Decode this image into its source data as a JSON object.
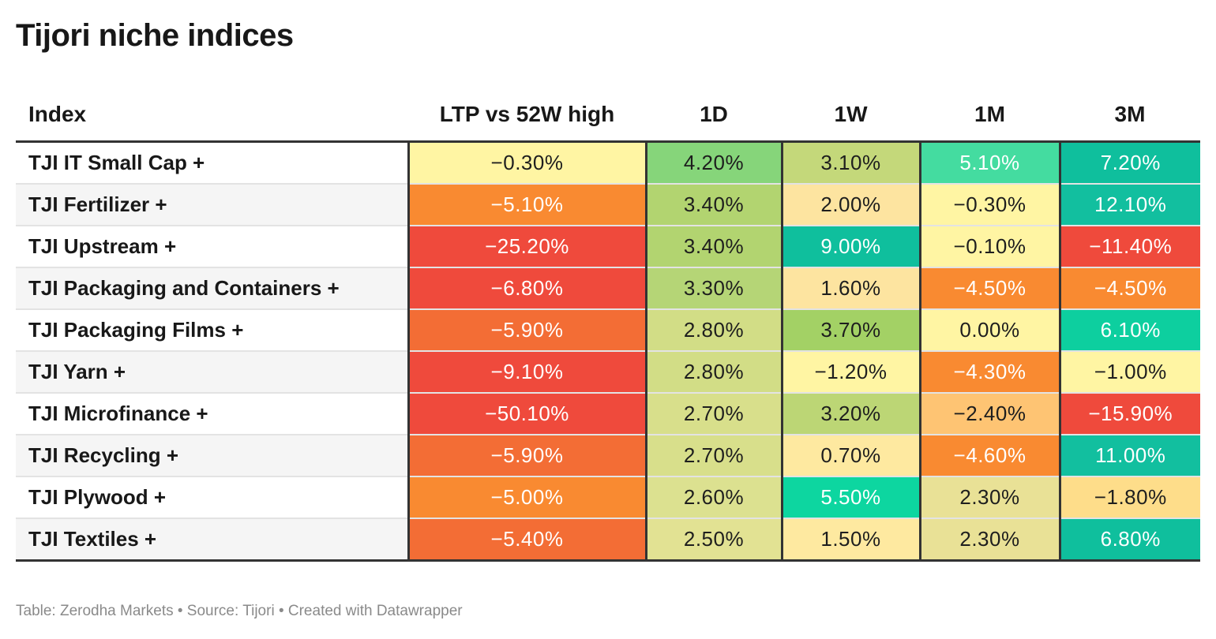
{
  "title": "Tijori niche indices",
  "footer": "Table: Zerodha Markets • Source: Tijori • Created with Datawrapper",
  "chart_data": {
    "type": "table",
    "columns": [
      "Index",
      "LTP vs 52W high",
      "1D",
      "1W",
      "1M",
      "3M"
    ],
    "rows": [
      {
        "name": "TJI IT Small Cap +",
        "values": [
          "−0.30%",
          "4.20%",
          "3.10%",
          "5.10%",
          "7.20%"
        ],
        "colors": [
          "#fff5a3",
          "#86d57a",
          "#c4d87a",
          "#44dca0",
          "#0fbf9d"
        ]
      },
      {
        "name": "TJI Fertilizer +",
        "values": [
          "−5.10%",
          "3.40%",
          "2.00%",
          "−0.30%",
          "12.10%"
        ],
        "colors": [
          "#f98a31",
          "#b2d470",
          "#fde4a0",
          "#fff5a3",
          "#12bf9f"
        ]
      },
      {
        "name": "TJI Upstream +",
        "values": [
          "−25.20%",
          "3.40%",
          "9.00%",
          "−0.10%",
          "−11.40%"
        ],
        "colors": [
          "#ef4a3c",
          "#b2d470",
          "#0fbf9d",
          "#fff5a3",
          "#ef4a3c"
        ]
      },
      {
        "name": "TJI Packaging and Containers +",
        "values": [
          "−6.80%",
          "3.30%",
          "1.60%",
          "−4.50%",
          "−4.50%"
        ],
        "colors": [
          "#ef4a3c",
          "#b5d576",
          "#fde4a0",
          "#f98a31",
          "#f98a31"
        ]
      },
      {
        "name": "TJI Packaging Films +",
        "values": [
          "−5.90%",
          "2.80%",
          "3.70%",
          "0.00%",
          "6.10%"
        ],
        "colors": [
          "#f36d35",
          "#d2dd86",
          "#a3d165",
          "#fff5a3",
          "#0dcf9f"
        ]
      },
      {
        "name": "TJI Yarn +",
        "values": [
          "−9.10%",
          "2.80%",
          "−1.20%",
          "−4.30%",
          "−1.00%"
        ],
        "colors": [
          "#ef4a3c",
          "#d2dd86",
          "#fff5a3",
          "#f98a31",
          "#fff5a3"
        ]
      },
      {
        "name": "TJI Microfinance +",
        "values": [
          "−50.10%",
          "2.70%",
          "3.20%",
          "−2.40%",
          "−15.90%"
        ],
        "colors": [
          "#ef4a3c",
          "#d8df8b",
          "#bcd675",
          "#fec473",
          "#ef4a3c"
        ]
      },
      {
        "name": "TJI Recycling +",
        "values": [
          "−5.90%",
          "2.70%",
          "0.70%",
          "−4.60%",
          "11.00%"
        ],
        "colors": [
          "#f36d35",
          "#d8df8b",
          "#fee9a0",
          "#f98a31",
          "#12bf9f"
        ]
      },
      {
        "name": "TJI Plywood +",
        "values": [
          "−5.00%",
          "2.60%",
          "5.50%",
          "2.30%",
          "−1.80%"
        ],
        "colors": [
          "#f98a31",
          "#dce190",
          "#0dd6a0",
          "#e9e196",
          "#fedd8a"
        ]
      },
      {
        "name": "TJI Textiles +",
        "values": [
          "−5.40%",
          "2.50%",
          "1.50%",
          "2.30%",
          "6.80%"
        ],
        "colors": [
          "#f36d35",
          "#e2e293",
          "#fee9a0",
          "#e9e196",
          "#0fbf9d"
        ]
      }
    ]
  }
}
